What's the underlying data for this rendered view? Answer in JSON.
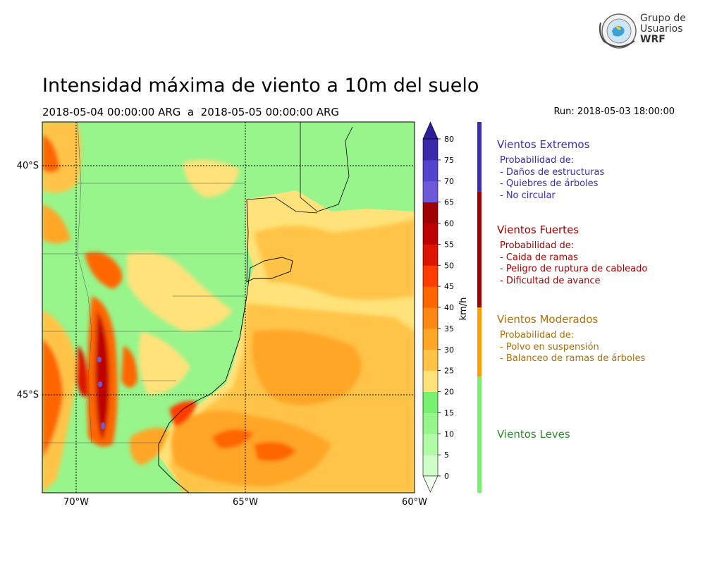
{
  "logo": {
    "line1": "Grupo de",
    "line2": "Usuarios",
    "line3": "WRF"
  },
  "title": "Intensidad máxima de viento a 10m del suelo",
  "period": "2018-05-04 00:00:00 ARG  a  2018-05-05 00:00:00 ARG",
  "run": "Run: 2018-05-03 18:00:00",
  "map": {
    "lon_labels": [
      "70°W",
      "65°W",
      "60°W"
    ],
    "lat_labels": [
      "40°S",
      "45°S"
    ],
    "lon_range": [
      -71,
      -60
    ],
    "lat_range": [
      -48.2,
      -39.2
    ],
    "grid": true
  },
  "colorbar": {
    "unit": "km/h",
    "ticks": [
      "0",
      "5",
      "10",
      "15",
      "20",
      "25",
      "30",
      "35",
      "40",
      "45",
      "50",
      "55",
      "60",
      "65",
      "70",
      "75",
      "80"
    ],
    "levels": [
      0,
      5,
      10,
      15,
      20,
      25,
      30,
      35,
      40,
      45,
      50,
      55,
      60,
      65,
      70,
      75,
      80
    ],
    "colors": [
      "#f0fff0",
      "#cfffc8",
      "#b2fba6",
      "#97f58b",
      "#78f070",
      "#ffe27a",
      "#ffc446",
      "#ffa626",
      "#ff8814",
      "#ff6600",
      "#ff3c00",
      "#dc1400",
      "#be0000",
      "#a00000",
      "#6e5ad8",
      "#5444cc",
      "#3a2aaa",
      "#2d1f99"
    ]
  },
  "legend": [
    {
      "name": "Vientos Extremos",
      "color": "#3a2db4",
      "range": [
        65,
        80
      ],
      "lines": [
        "Probabilidad de:",
        "- Daños de estructuras",
        "- Quiebres de árboles",
        "- No circular"
      ]
    },
    {
      "name": "Vientos Fuertes",
      "color": "#a50000",
      "range": [
        40,
        65
      ],
      "lines": [
        "Probabilidad de:",
        "- Caida de ramas",
        "- Peligro de ruptura de cableado",
        "- Dificultad de avance"
      ]
    },
    {
      "name": "Vientos Moderados",
      "color": "#b07000",
      "range": [
        25,
        40
      ],
      "lines": [
        "Probabilidad de:",
        "- Polvo en suspensión",
        "- Balanceo de ramas de árboles"
      ]
    },
    {
      "name": "Vientos Leves",
      "color": "#2f8a2f",
      "range": [
        0,
        25
      ],
      "lines": []
    }
  ],
  "legend_bar_colors": [
    "#3a2db4",
    "#a00000",
    "#ff9f00",
    "#78f070"
  ]
}
